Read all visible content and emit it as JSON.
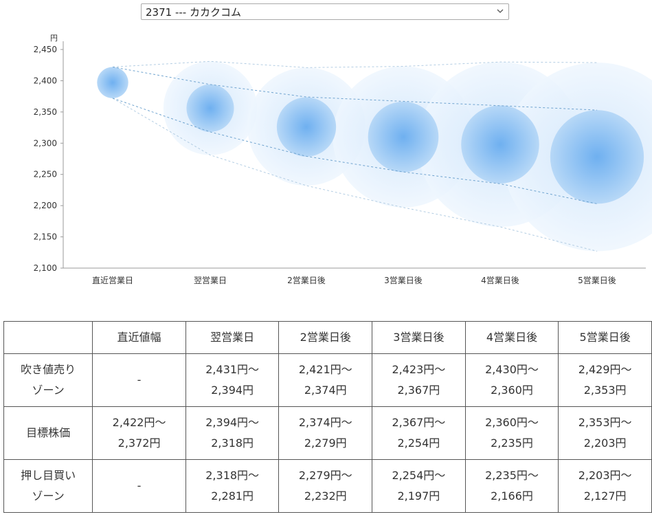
{
  "stock_selector": {
    "selected": "2371 --- カカクコム"
  },
  "chart_data": {
    "type": "bubble-range",
    "ylabel": "円",
    "ylim": [
      2100,
      2450
    ],
    "yticks": [
      "2,100",
      "2,150",
      "2,200",
      "2,250",
      "2,300",
      "2,350",
      "2,400",
      "2,450"
    ],
    "categories": [
      "直近営業日",
      "翌営業日",
      "2営業日後",
      "3営業日後",
      "4営業日後",
      "5営業日後"
    ],
    "center_values": [
      2397,
      2356,
      2326,
      2310,
      2298,
      2278
    ],
    "inner_range": {
      "upper": [
        2422,
        2394,
        2374,
        2367,
        2360,
        2353
      ],
      "lower": [
        2372,
        2318,
        2279,
        2254,
        2235,
        2203
      ]
    },
    "outer_range": {
      "upper": [
        2422,
        2431,
        2421,
        2423,
        2430,
        2429
      ],
      "lower": [
        2372,
        2281,
        2232,
        2197,
        2166,
        2127
      ]
    },
    "colors": {
      "bubble_core": "#4d9be8",
      "bubble_inner": "#bcdcf8",
      "bubble_outer": "#e4f1fd",
      "line_inner": "#6fa3cf",
      "line_outer": "#b3cde3",
      "axis": "#999999"
    }
  },
  "table": {
    "headers": [
      "",
      "直近値幅",
      "翌営業日",
      "2営業日後",
      "3営業日後",
      "4営業日後",
      "5営業日後"
    ],
    "rows": [
      {
        "label": [
          "吹き値売り",
          "ゾーン"
        ],
        "cells": [
          [
            "-"
          ],
          [
            "2,431円～",
            "2,394円"
          ],
          [
            "2,421円～",
            "2,374円"
          ],
          [
            "2,423円～",
            "2,367円"
          ],
          [
            "2,430円～",
            "2,360円"
          ],
          [
            "2,429円～",
            "2,353円"
          ]
        ]
      },
      {
        "label": [
          "目標株価"
        ],
        "cells": [
          [
            "2,422円～",
            "2,372円"
          ],
          [
            "2,394円～",
            "2,318円"
          ],
          [
            "2,374円～",
            "2,279円"
          ],
          [
            "2,367円～",
            "2,254円"
          ],
          [
            "2,360円～",
            "2,235円"
          ],
          [
            "2,353円～",
            "2,203円"
          ]
        ]
      },
      {
        "label": [
          "押し目買い",
          "ゾーン"
        ],
        "cells": [
          [
            "-"
          ],
          [
            "2,318円～",
            "2,281円"
          ],
          [
            "2,279円～",
            "2,232円"
          ],
          [
            "2,254円～",
            "2,197円"
          ],
          [
            "2,235円～",
            "2,166円"
          ],
          [
            "2,203円～",
            "2,127円"
          ]
        ]
      }
    ]
  }
}
